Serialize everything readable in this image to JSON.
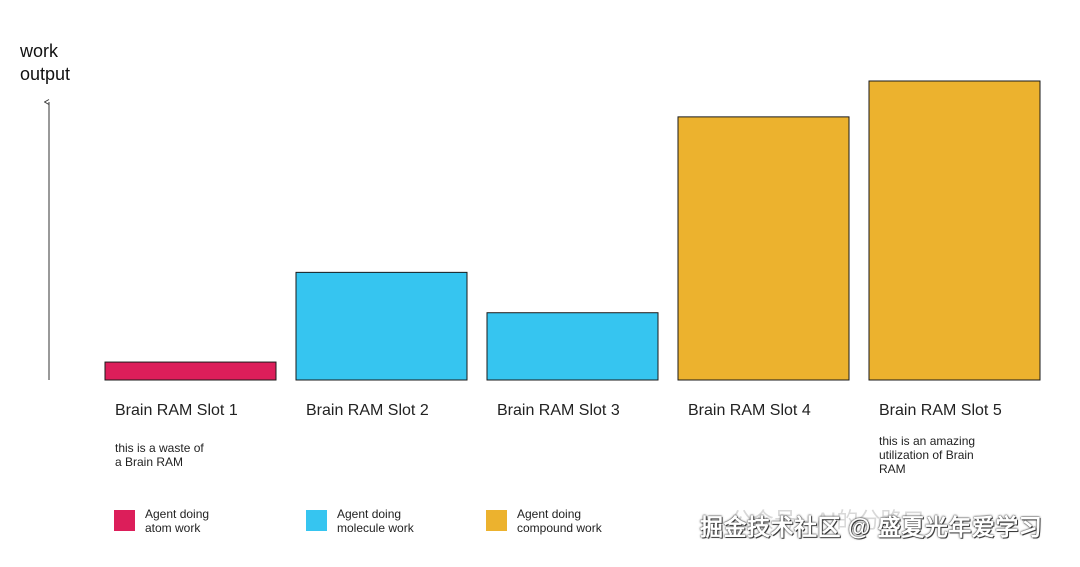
{
  "chart_data": {
    "type": "bar",
    "ylabel": "work\noutput",
    "xlabel": "",
    "ylim": [
      0,
      100
    ],
    "categories": [
      "Brain RAM Slot 1",
      "Brain RAM Slot 2",
      "Brain RAM Slot 3",
      "Brain RAM Slot 4",
      "Brain RAM Slot 5"
    ],
    "values": [
      6,
      36,
      22.5,
      88,
      100
    ],
    "bar_types": [
      "atom",
      "molecule",
      "molecule",
      "compound",
      "compound"
    ],
    "annotations": [
      {
        "category": "Brain RAM Slot 1",
        "text": "this is a waste of\na Brain RAM"
      },
      {
        "category": "Brain RAM Slot 5",
        "text": "this is an amazing\nutilization of Brain\nRAM"
      }
    ],
    "legend": [
      {
        "key": "atom",
        "label": "Agent doing\natom work",
        "color": "#DC1E5A"
      },
      {
        "key": "molecule",
        "label": "Agent doing\nmolecule work",
        "color": "#36C5F0"
      },
      {
        "key": "compound",
        "label": "Agent doing\ncompound work",
        "color": "#ECB22E"
      }
    ]
  },
  "watermark": {
    "text": "掘金技术社区 @ 盛夏光年爱学习",
    "faded": "公众号 · AI的分路口"
  }
}
